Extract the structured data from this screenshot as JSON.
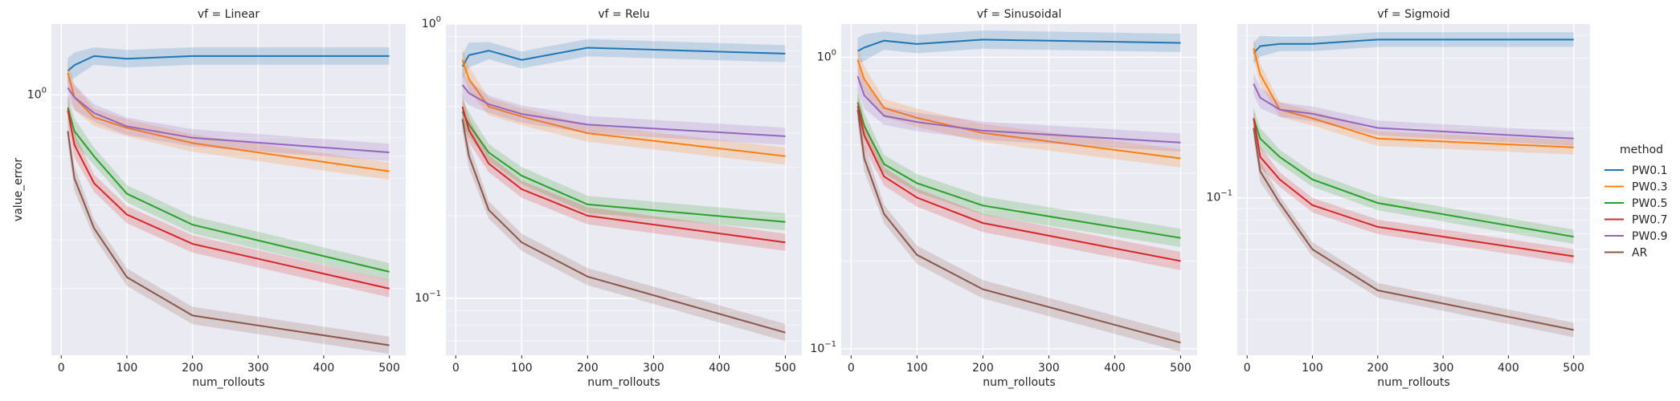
{
  "chart_data": [
    {
      "type": "line",
      "title": "vf = Linear",
      "xlabel": "num_rollouts",
      "ylabel": "value_error",
      "yscale": "log",
      "xlim": [
        -15,
        525
      ],
      "ylim": [
        0.115,
        1.8
      ],
      "x_ticks": [
        0,
        100,
        200,
        300,
        400,
        500
      ],
      "y_ticks": [
        {
          "value": 1.0,
          "label": "10^0"
        }
      ],
      "grid": true,
      "x": [
        10,
        20,
        50,
        100,
        200,
        500
      ],
      "series": [
        {
          "name": "PW0.1",
          "values": [
            1.22,
            1.28,
            1.38,
            1.35,
            1.38,
            1.38
          ]
        },
        {
          "name": "PW0.3",
          "values": [
            1.2,
            0.98,
            0.83,
            0.76,
            0.67,
            0.53
          ]
        },
        {
          "name": "PW0.5",
          "values": [
            0.9,
            0.74,
            0.6,
            0.44,
            0.34,
            0.23
          ]
        },
        {
          "name": "PW0.7",
          "values": [
            0.88,
            0.66,
            0.48,
            0.37,
            0.29,
            0.2
          ]
        },
        {
          "name": "PW0.9",
          "values": [
            1.06,
            0.98,
            0.86,
            0.77,
            0.7,
            0.62
          ]
        },
        {
          "name": "AR",
          "values": [
            0.74,
            0.5,
            0.33,
            0.22,
            0.16,
            0.125
          ]
        }
      ]
    },
    {
      "type": "line",
      "title": "vf = Relu",
      "xlabel": "num_rollouts",
      "ylabel": "",
      "yscale": "log",
      "xlim": [
        -15,
        525
      ],
      "ylim": [
        0.062,
        1.0
      ],
      "x_ticks": [
        0,
        100,
        200,
        300,
        400,
        500
      ],
      "y_ticks": [
        {
          "value": 1.0,
          "label": "10^0"
        },
        {
          "value": 0.1,
          "label": "10^-1"
        }
      ],
      "grid": true,
      "x": [
        10,
        20,
        50,
        100,
        200,
        500
      ],
      "series": [
        {
          "name": "PW0.1",
          "values": [
            0.7,
            0.77,
            0.8,
            0.74,
            0.82,
            0.78
          ]
        },
        {
          "name": "PW0.3",
          "values": [
            0.74,
            0.63,
            0.5,
            0.46,
            0.4,
            0.33
          ]
        },
        {
          "name": "PW0.5",
          "values": [
            0.48,
            0.43,
            0.34,
            0.28,
            0.22,
            0.19
          ]
        },
        {
          "name": "PW0.7",
          "values": [
            0.5,
            0.41,
            0.31,
            0.25,
            0.2,
            0.16
          ]
        },
        {
          "name": "PW0.9",
          "values": [
            0.6,
            0.56,
            0.51,
            0.47,
            0.43,
            0.39
          ]
        },
        {
          "name": "AR",
          "values": [
            0.45,
            0.33,
            0.21,
            0.16,
            0.12,
            0.075
          ]
        }
      ]
    },
    {
      "type": "line",
      "title": "vf = Sinusoidal",
      "xlabel": "num_rollouts",
      "ylabel": "",
      "yscale": "log",
      "xlim": [
        -15,
        525
      ],
      "ylim": [
        0.095,
        1.3
      ],
      "x_ticks": [
        0,
        100,
        200,
        300,
        400,
        500
      ],
      "y_ticks": [
        {
          "value": 1.0,
          "label": "10^0"
        },
        {
          "value": 0.1,
          "label": "10^-1"
        }
      ],
      "grid": true,
      "x": [
        10,
        20,
        50,
        100,
        200,
        500
      ],
      "series": [
        {
          "name": "PW0.1",
          "values": [
            1.05,
            1.08,
            1.14,
            1.11,
            1.15,
            1.12
          ]
        },
        {
          "name": "PW0.3",
          "values": [
            0.98,
            0.84,
            0.67,
            0.62,
            0.55,
            0.45
          ]
        },
        {
          "name": "PW0.5",
          "values": [
            0.7,
            0.58,
            0.43,
            0.37,
            0.31,
            0.24
          ]
        },
        {
          "name": "PW0.7",
          "values": [
            0.68,
            0.54,
            0.39,
            0.33,
            0.27,
            0.2
          ]
        },
        {
          "name": "PW0.9",
          "values": [
            0.86,
            0.74,
            0.63,
            0.6,
            0.56,
            0.51
          ]
        },
        {
          "name": "AR",
          "values": [
            0.66,
            0.45,
            0.29,
            0.21,
            0.16,
            0.105
          ]
        }
      ]
    },
    {
      "type": "line",
      "title": "vf = Sigmoid",
      "xlabel": "num_rollouts",
      "ylabel": "",
      "yscale": "log",
      "xlim": [
        -15,
        525
      ],
      "ylim": [
        0.021,
        0.56
      ],
      "x_ticks": [
        0,
        100,
        200,
        300,
        400,
        500
      ],
      "y_ticks": [
        {
          "value": 0.1,
          "label": "10^-1"
        }
      ],
      "grid": true,
      "x": [
        10,
        20,
        50,
        100,
        200,
        500
      ],
      "series": [
        {
          "name": "PW0.1",
          "values": [
            0.42,
            0.45,
            0.46,
            0.46,
            0.48,
            0.48
          ]
        },
        {
          "name": "PW0.3",
          "values": [
            0.44,
            0.34,
            0.24,
            0.22,
            0.18,
            0.165
          ]
        },
        {
          "name": "PW0.5",
          "values": [
            0.22,
            0.18,
            0.15,
            0.12,
            0.095,
            0.068
          ]
        },
        {
          "name": "PW0.7",
          "values": [
            0.22,
            0.15,
            0.12,
            0.093,
            0.075,
            0.056
          ]
        },
        {
          "name": "PW0.9",
          "values": [
            0.31,
            0.27,
            0.24,
            0.23,
            0.2,
            0.18
          ]
        },
        {
          "name": "AR",
          "values": [
            0.2,
            0.13,
            0.095,
            0.06,
            0.04,
            0.027
          ]
        }
      ]
    }
  ],
  "legend": {
    "title": "method",
    "placement": "right",
    "items": [
      {
        "label": "PW0.1",
        "color": "#1f77b4"
      },
      {
        "label": "PW0.3",
        "color": "#ff7f0e"
      },
      {
        "label": "PW0.5",
        "color": "#2ca02c"
      },
      {
        "label": "PW0.7",
        "color": "#d62728"
      },
      {
        "label": "PW0.9",
        "color": "#9467bd"
      },
      {
        "label": "AR",
        "color": "#8c564b"
      }
    ]
  },
  "colors": {
    "PW0.1": "#1f77b4",
    "PW0.3": "#ff7f0e",
    "PW0.5": "#2ca02c",
    "PW0.7": "#d62728",
    "PW0.9": "#9467bd",
    "AR": "#8c564b",
    "panel_background": "#eaeaf2",
    "grid": "#ffffff"
  }
}
